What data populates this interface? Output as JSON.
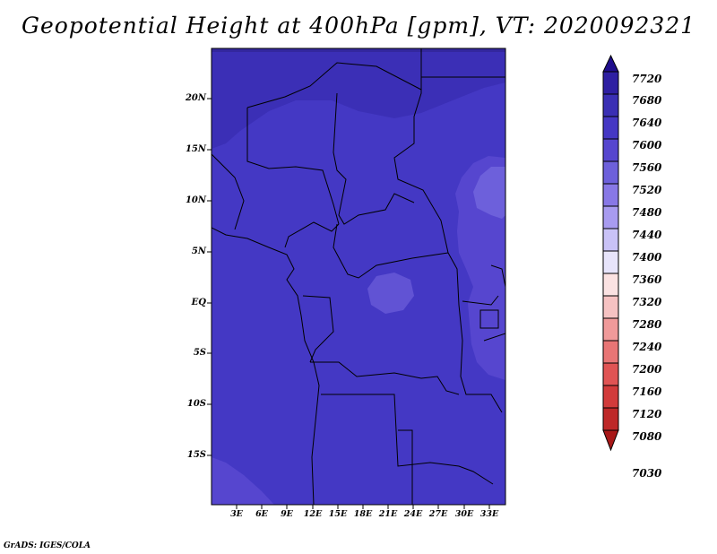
{
  "title": "Geopotential Height at 400hPa [gpm], VT: 2020092321",
  "footer": "GrADS: IGES/COLA",
  "map": {
    "lat_labels": [
      "20N",
      "15N",
      "10N",
      "5N",
      "EQ",
      "5S",
      "10S",
      "15S"
    ],
    "lon_labels": [
      "3E",
      "6E",
      "9E",
      "12E",
      "15E",
      "18E",
      "21E",
      "24E",
      "27E",
      "30E",
      "33E"
    ]
  },
  "colorbar": {
    "labels": [
      "7720",
      "7680",
      "7640",
      "7600",
      "7560",
      "7520",
      "7480",
      "7440",
      "7400",
      "7360",
      "7320",
      "7280",
      "7240",
      "7200",
      "7160",
      "7120",
      "7080",
      "7030"
    ],
    "colors": [
      "#1f0d8c",
      "#2e1fa2",
      "#3a2fb4",
      "#4537c4",
      "#5646cf",
      "#6d60db",
      "#8878e6",
      "#a89bf0",
      "#c9c2f7",
      "#e7e4fb",
      "#fbe2e2",
      "#f6c2c2",
      "#f09a9a",
      "#e87575",
      "#e05454",
      "#d23b3b",
      "#be2828",
      "#a81818"
    ]
  }
}
